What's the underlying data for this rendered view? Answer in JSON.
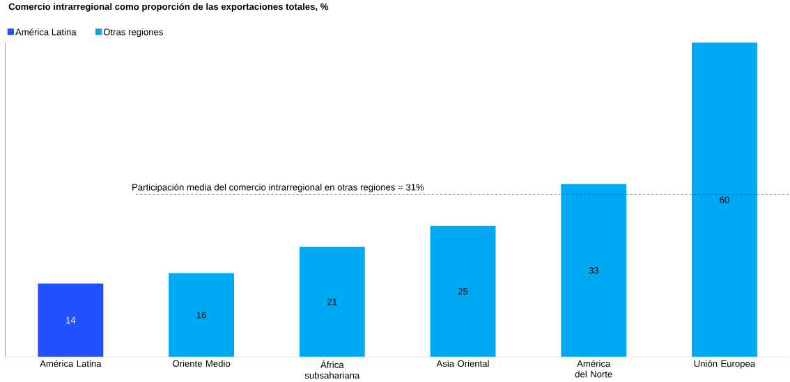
{
  "chart_data": {
    "type": "bar",
    "title": "Comercio intrarregional como proporción de las exportaciones totales, %",
    "ylim": [
      0,
      60
    ],
    "categories": [
      "América Latina",
      "Oriente Medio",
      "África subsahariana",
      "Asia Oriental",
      "América del Norte",
      "Unión Europea"
    ],
    "series": [
      {
        "name": "América Latina",
        "color": "#2251ff",
        "values": [
          14,
          null,
          null,
          null,
          null,
          null
        ]
      },
      {
        "name": "Otras regiones",
        "color": "#00a9f4",
        "values": [
          null,
          16,
          21,
          25,
          33,
          60
        ]
      }
    ],
    "data_labels": true,
    "legend": "top left",
    "ref_lines": [
      {
        "axis": "y",
        "value": 31,
        "label": "Participación media del comercio intrarregional en otras regiones = 31%",
        "line_style": "dashed"
      }
    ]
  }
}
